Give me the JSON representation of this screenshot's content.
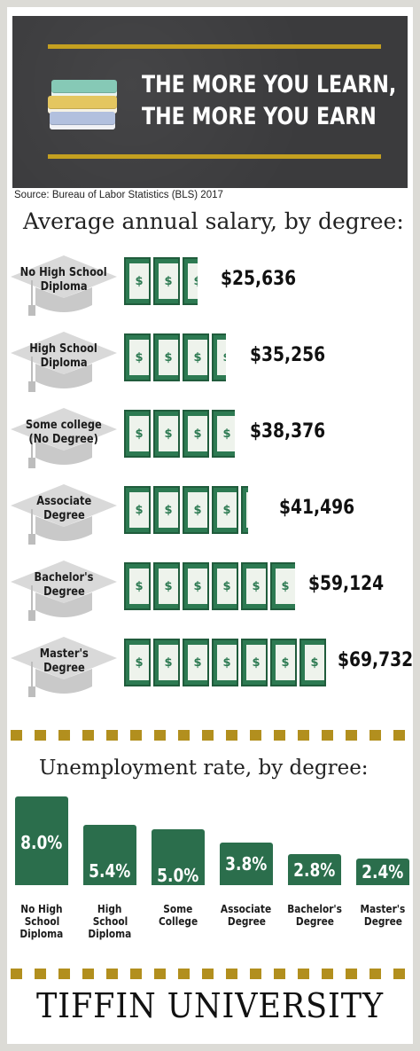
{
  "banner": {
    "title_line1": "THE MORE YOU LEARN,",
    "title_line2": "THE MORE YOU EARN",
    "book_colors": [
      "#86c9b6",
      "#e4c660",
      "#b2c0de"
    ]
  },
  "source": "Source: Bureau of Labor Statistics (BLS) 2017",
  "colors": {
    "gold": "#c4a020",
    "green": "#2b6e4c",
    "chalkboard": "#3b3b3d",
    "cap_gray": "#d6d6d6"
  },
  "chart_data": [
    {
      "type": "bar",
      "title": "Average annual salary, by degree:",
      "categories": [
        "No High School Diploma",
        "High School Diploma",
        "Some college (No Degree)",
        "Associate Degree",
        "Bachelor's Degree",
        "Master's Degree"
      ],
      "category_lines": [
        [
          "No High School",
          "Diploma"
        ],
        [
          "High School",
          "Diploma"
        ],
        [
          "Some college",
          "(No Degree)"
        ],
        [
          "Associate",
          "Degree"
        ],
        [
          "Bachelor's",
          "Degree"
        ],
        [
          "Master's",
          "Degree"
        ]
      ],
      "values": [
        25636,
        35256,
        38376,
        41496,
        59124,
        69732
      ],
      "value_labels": [
        "$25,636",
        "$35,256",
        "$38,376",
        "$41,496",
        "$59,124",
        "$69,732"
      ],
      "icon": "dollar-bill-icon"
    },
    {
      "type": "bar",
      "title": "Unemployment rate, by degree:",
      "categories": [
        "No High School Diploma",
        "High School Diploma",
        "Some College",
        "Associate Degree",
        "Bachelor's Degree",
        "Master's Degree"
      ],
      "category_lines": [
        [
          "No High",
          "School",
          "Diploma"
        ],
        [
          "High",
          "School",
          "Diploma"
        ],
        [
          "Some",
          "College"
        ],
        [
          "Associate",
          "Degree"
        ],
        [
          "Bachelor's",
          "Degree"
        ],
        [
          "Master's",
          "Degree"
        ]
      ],
      "values": [
        8.0,
        5.4,
        5.0,
        3.8,
        2.8,
        2.4
      ],
      "value_labels": [
        "8.0%",
        "5.4%",
        "5.0%",
        "3.8%",
        "2.8%",
        "2.4%"
      ],
      "unit": "%"
    }
  ],
  "footer": "TIFFIN UNIVERSITY"
}
